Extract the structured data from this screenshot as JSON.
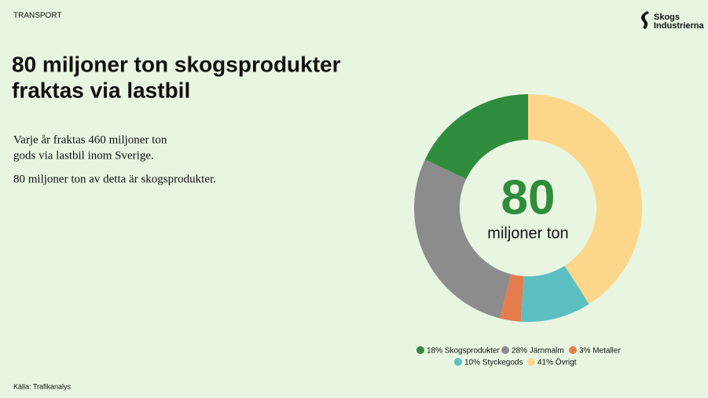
{
  "header": {
    "section": "TRANSPORT",
    "logo": [
      "Skogs",
      "Industrierna"
    ]
  },
  "title": [
    "80 miljoner ton skogsprodukter",
    "fraktas via lastbil"
  ],
  "body": [
    "Varje år fraktas 460 miljoner ton",
    "gods via lastbil inom Sverige.",
    "80 miljoner ton av detta är skogsprodukter."
  ],
  "source": "Källa: Trafikanalys",
  "chart_data": {
    "type": "donut",
    "center_value": "80",
    "center_label": "miljoner ton",
    "categories": [
      "18% Skogsprodukter",
      "28% Järnmalm",
      "3% Metaller",
      "10% Styckegods",
      "41% Övrigt"
    ],
    "values": [
      18,
      28,
      3,
      10,
      41
    ],
    "colors": [
      "#2f8c3c",
      "#8c8c8c",
      "#e57c4e",
      "#5bbfc1",
      "#fbd68b"
    ]
  }
}
